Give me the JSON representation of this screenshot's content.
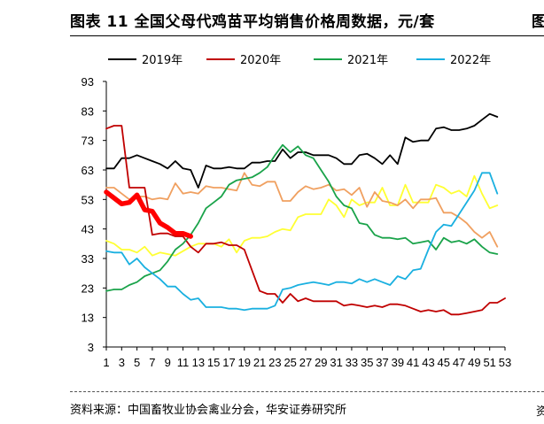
{
  "header": {
    "title": "图表 11 全国父母代鸡苗平均销售价格周数据，元/套",
    "edge_glyph": "图"
  },
  "footer": {
    "source": "资料来源：中国畜牧业协会禽业分会，华安证券研究所",
    "edge_glyph": "资"
  },
  "colors": {
    "s2019": "#000000",
    "s2020": "#c00000",
    "s2021": "#1aa34a",
    "s2022": "#1ab0e0",
    "yellow": "#ffff33",
    "orange": "#f0a060",
    "thick_red": "#ff0000"
  },
  "chart_data": {
    "type": "line",
    "title": "",
    "xlabel": "",
    "ylabel": "",
    "ylim": [
      3,
      93
    ],
    "xlim": [
      1,
      53
    ],
    "yticks": [
      3,
      13,
      23,
      33,
      43,
      53,
      63,
      73,
      83,
      93
    ],
    "xtick_labels": [
      "1",
      "3",
      "5",
      "7",
      "9",
      "11",
      "13",
      "15",
      "17",
      "19",
      "21",
      "23",
      "25",
      "27",
      "29",
      "31",
      "33",
      "35",
      "37",
      "39",
      "41",
      "43",
      "45",
      "47",
      "49",
      "51",
      "53"
    ],
    "legend": {
      "position": "top",
      "entries": [
        "2019年",
        "2020年",
        "2021年",
        "2022年"
      ]
    },
    "grid": false,
    "series": [
      {
        "name": "2019年",
        "color_key": "s2019",
        "width": 1.8,
        "legend": true,
        "x": [
          1,
          2,
          3,
          4,
          5,
          6,
          7,
          8,
          9,
          10,
          11,
          12,
          13,
          14,
          15,
          16,
          17,
          18,
          19,
          20,
          21,
          22,
          23,
          24,
          25,
          26,
          27,
          28,
          29,
          30,
          31,
          32,
          33,
          34,
          35,
          36,
          37,
          38,
          39,
          40,
          41,
          42,
          43,
          44,
          45,
          46,
          47,
          48,
          49,
          50,
          51,
          52
        ],
        "y": [
          63.5,
          63.5,
          67,
          67,
          68,
          67,
          66,
          65,
          63.5,
          66,
          63.5,
          63,
          57,
          64.5,
          63.5,
          63.5,
          64,
          63.5,
          63.5,
          65.5,
          65.5,
          66,
          66,
          70,
          67,
          69,
          69,
          68,
          68,
          68,
          67,
          65,
          65,
          68,
          68.5,
          67,
          65,
          68,
          65,
          74,
          72.5,
          73,
          73,
          77,
          77.5,
          76.5,
          76.5,
          77,
          78,
          80,
          82,
          81
        ]
      },
      {
        "name": "2020年",
        "color_key": "s2020",
        "width": 1.8,
        "legend": true,
        "x": [
          1,
          2,
          3,
          4,
          5,
          6,
          7,
          8,
          9,
          10,
          11,
          12,
          13,
          14,
          15,
          16,
          17,
          18,
          19,
          20,
          21,
          22,
          23,
          24,
          25,
          26,
          27,
          28,
          29,
          30,
          31,
          32,
          33,
          34,
          35,
          36,
          37,
          38,
          39,
          40,
          41,
          42,
          43,
          44,
          45,
          46,
          47,
          48,
          49,
          50,
          51,
          52,
          53
        ],
        "y": [
          77,
          78,
          78,
          57,
          57,
          57,
          41,
          41.5,
          41.5,
          40.5,
          40.5,
          37,
          35,
          38,
          38,
          38.5,
          37.5,
          37.5,
          36,
          29,
          22,
          21,
          21,
          18,
          21,
          18.5,
          19.5,
          18.5,
          18.5,
          18.5,
          18.5,
          17,
          17.5,
          17,
          16.5,
          17,
          16.5,
          17.5,
          17.5,
          17,
          16,
          15,
          15.5,
          15,
          15.5,
          14,
          14,
          14.5,
          15,
          15.5,
          18,
          18,
          19.5
        ]
      },
      {
        "name": "2021年",
        "color_key": "s2021",
        "width": 1.8,
        "legend": true,
        "x": [
          1,
          2,
          3,
          4,
          5,
          6,
          7,
          8,
          9,
          10,
          11,
          12,
          13,
          14,
          15,
          16,
          17,
          18,
          19,
          20,
          21,
          22,
          23,
          24,
          25,
          26,
          27,
          28,
          29,
          30,
          31,
          32,
          33,
          34,
          35,
          36,
          37,
          38,
          39,
          40,
          41,
          42,
          43,
          44,
          45,
          46,
          47,
          48,
          49,
          50,
          51,
          52
        ],
        "y": [
          22,
          22.5,
          22.5,
          24,
          25,
          27,
          28,
          29,
          32,
          36,
          38,
          41,
          45,
          50,
          52,
          54,
          58,
          59.5,
          60,
          60.5,
          62,
          64,
          68,
          71.5,
          69,
          71,
          68,
          67,
          63,
          59,
          54,
          51,
          50,
          45,
          44.5,
          41,
          40,
          40,
          39.5,
          40,
          38,
          38.5,
          39,
          36,
          40,
          38.5,
          39,
          38,
          39.5,
          37,
          35,
          34.5
        ]
      },
      {
        "name": "2022年",
        "color_key": "s2022",
        "width": 1.8,
        "legend": true,
        "x": [
          1,
          2,
          3,
          4,
          5,
          6,
          7,
          8,
          9,
          10,
          11,
          12,
          13,
          14,
          15,
          16,
          17,
          18,
          19,
          20,
          21,
          22,
          23,
          24,
          25,
          26,
          27,
          28,
          29,
          30,
          31,
          32,
          33,
          34,
          35,
          36,
          37,
          38,
          39,
          40,
          41,
          42,
          43,
          44,
          45,
          46,
          47,
          48,
          49,
          50,
          51,
          52
        ],
        "y": [
          35.5,
          35,
          35,
          31,
          33,
          30,
          28,
          26,
          23.5,
          23.5,
          21,
          19,
          19.5,
          16.5,
          16.5,
          16.5,
          16,
          16,
          15.5,
          16,
          16,
          16,
          17,
          22.5,
          23,
          24,
          24.5,
          25,
          24.5,
          24,
          25,
          25,
          24.5,
          26,
          25,
          26,
          25,
          24,
          27,
          26,
          29,
          29.5,
          36,
          42,
          44.5,
          44,
          48,
          52,
          56,
          62,
          62,
          55
        ]
      },
      {
        "name": "",
        "color_key": "yellow",
        "width": 1.8,
        "legend": false,
        "x": [
          1,
          2,
          3,
          4,
          5,
          6,
          7,
          8,
          9,
          10,
          11,
          12,
          13,
          14,
          15,
          16,
          17,
          18,
          19,
          20,
          21,
          22,
          23,
          24,
          25,
          26,
          27,
          28,
          29,
          30,
          31,
          32,
          33,
          34,
          35,
          36,
          37,
          38,
          39,
          40,
          41,
          42,
          43,
          44,
          45,
          46,
          47,
          48,
          49,
          50,
          51,
          52
        ],
        "y": [
          39,
          38,
          36,
          36,
          35,
          37,
          34,
          35,
          34.5,
          34,
          35.5,
          37,
          38,
          38,
          38,
          37,
          39.5,
          35,
          39,
          40,
          40,
          40.5,
          42,
          43,
          42.5,
          47,
          48,
          48,
          48,
          53,
          51,
          47,
          53,
          51,
          52,
          52,
          57,
          51,
          51,
          58,
          52,
          52,
          52,
          58,
          57,
          55,
          56,
          54,
          61,
          55,
          50,
          51
        ]
      },
      {
        "name": "",
        "color_key": "orange",
        "width": 1.8,
        "legend": false,
        "x": [
          1,
          2,
          3,
          4,
          5,
          6,
          7,
          8,
          9,
          10,
          11,
          12,
          13,
          14,
          15,
          16,
          17,
          18,
          19,
          20,
          21,
          22,
          23,
          24,
          25,
          26,
          27,
          28,
          29,
          30,
          31,
          32,
          33,
          34,
          35,
          36,
          37,
          38,
          39,
          40,
          41,
          42,
          43,
          44,
          45,
          46,
          47,
          48,
          49,
          50,
          51,
          52
        ],
        "y": [
          57,
          57,
          55,
          53,
          54,
          54,
          53,
          53.5,
          53,
          58.5,
          55,
          55.5,
          55,
          57.5,
          57,
          57,
          56.5,
          56,
          62,
          58,
          57.5,
          59,
          59,
          52.5,
          52.5,
          55.5,
          57.5,
          56.5,
          57,
          58,
          56,
          56.5,
          54.5,
          57,
          50.5,
          55.5,
          52.5,
          52,
          51,
          53,
          50,
          53,
          53,
          53.5,
          48.5,
          48.5,
          47,
          45,
          42,
          40,
          42,
          37
        ]
      },
      {
        "name": "",
        "color_key": "thick_red",
        "width": 5.5,
        "legend": false,
        "x": [
          1,
          2,
          3,
          4,
          5,
          6,
          7,
          8,
          9,
          10,
          11,
          12
        ],
        "y": [
          55.5,
          53.5,
          51.5,
          52,
          54.5,
          49.5,
          49,
          45,
          43.5,
          41.5,
          41.5,
          40.5
        ]
      }
    ]
  }
}
